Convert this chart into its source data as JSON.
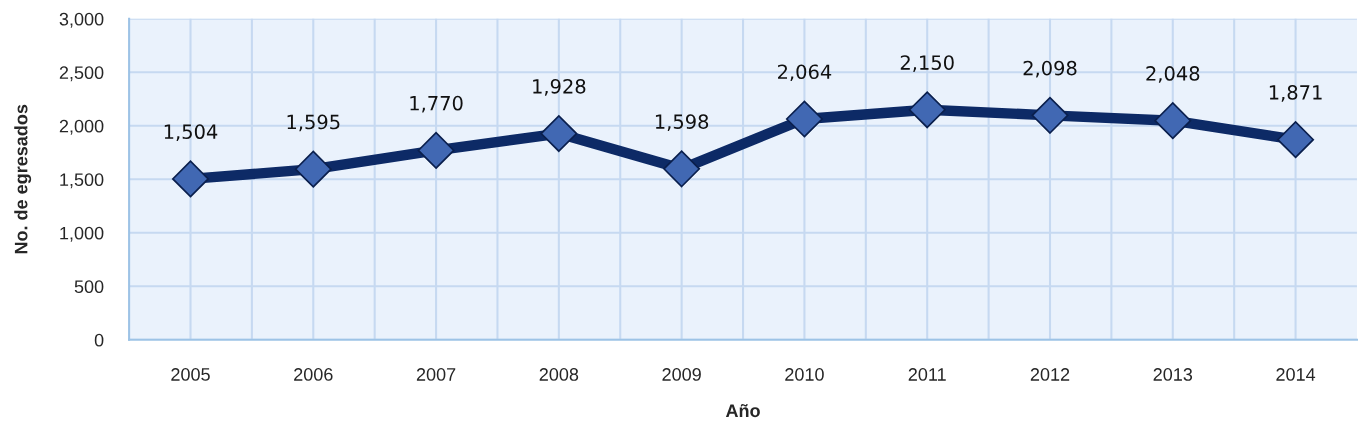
{
  "chart_data": {
    "type": "line",
    "xlabel": "Año",
    "ylabel": "No. de egresados",
    "categories": [
      "2005",
      "2006",
      "2007",
      "2008",
      "2009",
      "2010",
      "2011",
      "2012",
      "2013",
      "2014"
    ],
    "series": [
      {
        "color": "#0d2a66",
        "values": [
          1504,
          1595,
          1770,
          1928,
          1598,
          2064,
          2150,
          2098,
          2048,
          1871
        ],
        "value_labels": [
          "1,504",
          "1,595",
          "1,770",
          "1,928",
          "1,598",
          "2,064",
          "2,150",
          "2,098",
          "2,048",
          "1,871"
        ]
      }
    ],
    "ylim": [
      0,
      3000
    ],
    "yticks": [
      0,
      500,
      {
        "value": 1000,
        "label": "1,000"
      },
      {
        "value": 1500,
        "label": "1,500"
      },
      {
        "value": 2000,
        "label": "2,000"
      },
      {
        "value": 2500,
        "label": "2,500"
      },
      {
        "value": 3000,
        "label": "3,000"
      }
    ],
    "grid": true,
    "marker": "diamond",
    "line_style": "solid"
  }
}
